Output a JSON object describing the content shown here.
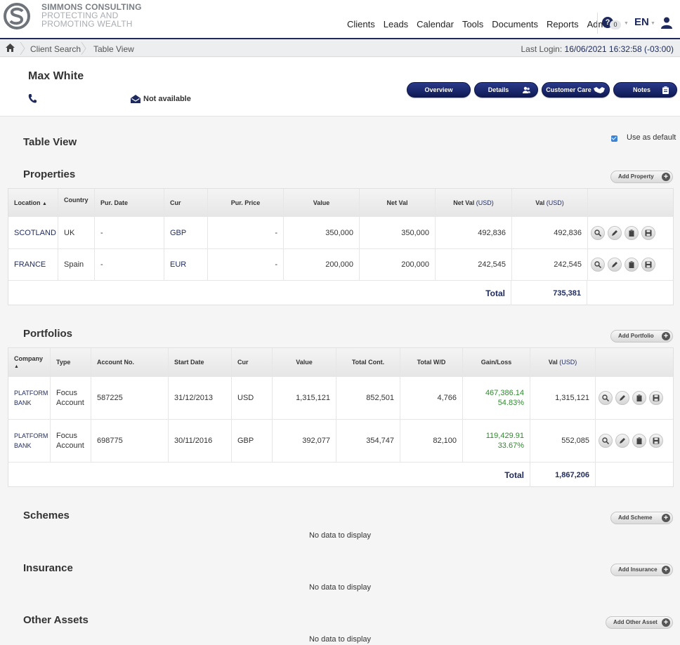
{
  "brand": {
    "line1": "SIMMONS CONSULTING",
    "line2": "PROTECTING AND",
    "line3": "PROMOTING WEALTH"
  },
  "nav": [
    "Clients",
    "Leads",
    "Calendar",
    "Tools",
    "Documents",
    "Reports",
    "Admin"
  ],
  "header": {
    "help_count": "0",
    "language": "EN"
  },
  "breadcrumb": {
    "items": [
      "Client Search",
      "Table View"
    ],
    "last_login_label": "Last Login:",
    "last_login_value": "16/06/2021 16:32:58 (-03:00)"
  },
  "client": {
    "name": "Max White",
    "email": "Not available",
    "buttons": {
      "overview": "Overview",
      "details": "Details",
      "customer_care": "Customer Care",
      "notes": "Notes"
    }
  },
  "table_view": {
    "title": "Table View",
    "default_label": "Use as default",
    "default_checked": true
  },
  "properties": {
    "title": "Properties",
    "add_label": "Add Property",
    "columns": {
      "location": "Location",
      "country": "Country",
      "pur_date": "Pur. Date",
      "cur": "Cur",
      "pur_price": "Pur. Price",
      "value": "Value",
      "net_val": "Net Val",
      "net_val_usd": "Net Val",
      "val_usd": "Val",
      "usd": "(USD)"
    },
    "sort_glyph": "▲",
    "rows": [
      {
        "location": "SCOTLAND",
        "country": "UK",
        "pur_date": "-",
        "cur": "GBP",
        "pur_price": "-",
        "value": "350,000",
        "net_val": "350,000",
        "net_val_usd": "492,836",
        "val_usd": "492,836"
      },
      {
        "location": "FRANCE",
        "country": "Spain",
        "pur_date": "-",
        "cur": "EUR",
        "pur_price": "-",
        "value": "200,000",
        "net_val": "200,000",
        "net_val_usd": "242,545",
        "val_usd": "242,545"
      }
    ],
    "total_label": "Total",
    "total_value": "735,381"
  },
  "portfolios": {
    "title": "Portfolios",
    "add_label": "Add Portfolio",
    "columns": {
      "company": "Company",
      "type": "Type",
      "account_no": "Account No.",
      "start_date": "Start Date",
      "cur": "Cur",
      "value": "Value",
      "total_cont": "Total Cont.",
      "total_wd": "Total W/D",
      "gain_loss": "Gain/Loss",
      "val_usd": "Val",
      "usd": "(USD)"
    },
    "sort_glyph": "▲",
    "rows": [
      {
        "company_1": "PLATFORM",
        "company_2": "BANK",
        "type_1": "Focus",
        "type_2": "Account",
        "account_no": "587225",
        "start_date": "31/12/2013",
        "cur": "USD",
        "value": "1,315,121",
        "total_cont": "852,501",
        "total_wd": "4,766",
        "gain": "467,386.14",
        "gain_pct": "54.83%",
        "val_usd": "1,315,121"
      },
      {
        "company_1": "PLATFORM",
        "company_2": "BANK",
        "type_1": "Focus",
        "type_2": "Account",
        "account_no": "698775",
        "start_date": "30/11/2016",
        "cur": "GBP",
        "value": "392,077",
        "total_cont": "354,747",
        "total_wd": "82,100",
        "gain": "119,429.91",
        "gain_pct": "33.67%",
        "val_usd": "552,085"
      }
    ],
    "total_label": "Total",
    "total_value": "1,867,206"
  },
  "schemes": {
    "title": "Schemes",
    "add_label": "Add Scheme",
    "empty": "No data to display"
  },
  "insurance": {
    "title": "Insurance",
    "add_label": "Add Insurance",
    "empty": "No data to display"
  },
  "other_assets": {
    "title": "Other Assets",
    "add_label": "Add Other Asset",
    "empty": "No data to display"
  },
  "colors": {
    "navy": "#1e2a5e",
    "gain_green": "#2e8b2e",
    "checkbox_blue": "#3b82d6"
  }
}
